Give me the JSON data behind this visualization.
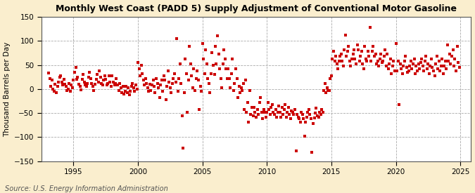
{
  "title": "Monthly West Coast (PADD 5) Supply Adjustment of Conventional Motor Gasoline",
  "ylabel": "Thousand Barrels per Day",
  "source": "Source: U.S. Energy Information Administration",
  "fig_bg_color": "#faeece",
  "plot_bg_color": "#ffffff",
  "dot_color": "#cc0000",
  "dot_size": 5,
  "ylim": [
    -150,
    150
  ],
  "xlim": [
    1992.5,
    2025.8
  ],
  "yticks": [
    -150,
    -100,
    -50,
    0,
    50,
    100,
    150
  ],
  "xticks": [
    1995,
    2000,
    2005,
    2010,
    2015,
    2020,
    2025
  ],
  "data_points": [
    [
      1993.08,
      33
    ],
    [
      1993.17,
      22
    ],
    [
      1993.25,
      5
    ],
    [
      1993.33,
      18
    ],
    [
      1993.42,
      0
    ],
    [
      1993.5,
      -5
    ],
    [
      1993.58,
      10
    ],
    [
      1993.67,
      -8
    ],
    [
      1993.75,
      5
    ],
    [
      1993.83,
      15
    ],
    [
      1993.92,
      25
    ],
    [
      1994.0,
      28
    ],
    [
      1994.08,
      15
    ],
    [
      1994.17,
      8
    ],
    [
      1994.25,
      20
    ],
    [
      1994.33,
      10
    ],
    [
      1994.42,
      5
    ],
    [
      1994.5,
      -3
    ],
    [
      1994.58,
      0
    ],
    [
      1994.67,
      12
    ],
    [
      1994.75,
      -5
    ],
    [
      1994.83,
      8
    ],
    [
      1994.92,
      3
    ],
    [
      1995.0,
      18
    ],
    [
      1995.08,
      35
    ],
    [
      1995.17,
      45
    ],
    [
      1995.25,
      20
    ],
    [
      1995.33,
      25
    ],
    [
      1995.42,
      10
    ],
    [
      1995.5,
      5
    ],
    [
      1995.58,
      -2
    ],
    [
      1995.67,
      20
    ],
    [
      1995.75,
      30
    ],
    [
      1995.83,
      15
    ],
    [
      1995.92,
      8
    ],
    [
      1996.0,
      5
    ],
    [
      1996.08,
      12
    ],
    [
      1996.17,
      25
    ],
    [
      1996.25,
      35
    ],
    [
      1996.33,
      22
    ],
    [
      1996.42,
      12
    ],
    [
      1996.5,
      5
    ],
    [
      1996.58,
      -3
    ],
    [
      1996.67,
      10
    ],
    [
      1996.75,
      20
    ],
    [
      1996.83,
      30
    ],
    [
      1996.92,
      15
    ],
    [
      1997.0,
      38
    ],
    [
      1997.08,
      25
    ],
    [
      1997.17,
      12
    ],
    [
      1997.25,
      8
    ],
    [
      1997.33,
      18
    ],
    [
      1997.42,
      28
    ],
    [
      1997.5,
      20
    ],
    [
      1997.58,
      8
    ],
    [
      1997.67,
      12
    ],
    [
      1997.75,
      28
    ],
    [
      1997.83,
      15
    ],
    [
      1997.92,
      5
    ],
    [
      1998.0,
      28
    ],
    [
      1998.08,
      15
    ],
    [
      1998.17,
      8
    ],
    [
      1998.25,
      12
    ],
    [
      1998.33,
      22
    ],
    [
      1998.42,
      8
    ],
    [
      1998.5,
      -3
    ],
    [
      1998.58,
      12
    ],
    [
      1998.67,
      2
    ],
    [
      1998.75,
      -8
    ],
    [
      1998.83,
      5
    ],
    [
      1998.92,
      -10
    ],
    [
      1999.0,
      -5
    ],
    [
      1999.08,
      5
    ],
    [
      1999.17,
      -8
    ],
    [
      1999.25,
      2
    ],
    [
      1999.33,
      -12
    ],
    [
      1999.42,
      -5
    ],
    [
      1999.5,
      5
    ],
    [
      1999.58,
      12
    ],
    [
      1999.67,
      2
    ],
    [
      1999.75,
      -5
    ],
    [
      1999.83,
      8
    ],
    [
      1999.92,
      0
    ],
    [
      2000.0,
      55
    ],
    [
      2000.08,
      42
    ],
    [
      2000.17,
      28
    ],
    [
      2000.25,
      50
    ],
    [
      2000.33,
      32
    ],
    [
      2000.42,
      18
    ],
    [
      2000.5,
      8
    ],
    [
      2000.58,
      22
    ],
    [
      2000.67,
      12
    ],
    [
      2000.75,
      2
    ],
    [
      2000.83,
      -5
    ],
    [
      2000.92,
      10
    ],
    [
      2001.0,
      -3
    ],
    [
      2001.08,
      8
    ],
    [
      2001.17,
      18
    ],
    [
      2001.25,
      5
    ],
    [
      2001.33,
      -8
    ],
    [
      2001.42,
      22
    ],
    [
      2001.5,
      12
    ],
    [
      2001.58,
      2
    ],
    [
      2001.67,
      -18
    ],
    [
      2001.75,
      8
    ],
    [
      2001.83,
      18
    ],
    [
      2001.92,
      -5
    ],
    [
      2002.0,
      28
    ],
    [
      2002.08,
      18
    ],
    [
      2002.17,
      -22
    ],
    [
      2002.25,
      5
    ],
    [
      2002.33,
      38
    ],
    [
      2002.42,
      15
    ],
    [
      2002.5,
      2
    ],
    [
      2002.58,
      -8
    ],
    [
      2002.67,
      12
    ],
    [
      2002.75,
      22
    ],
    [
      2002.83,
      32
    ],
    [
      2002.92,
      15
    ],
    [
      2003.0,
      105
    ],
    [
      2003.08,
      -5
    ],
    [
      2003.17,
      22
    ],
    [
      2003.25,
      52
    ],
    [
      2003.33,
      12
    ],
    [
      2003.42,
      -55
    ],
    [
      2003.5,
      -122
    ],
    [
      2003.58,
      -8
    ],
    [
      2003.67,
      62
    ],
    [
      2003.75,
      32
    ],
    [
      2003.83,
      -48
    ],
    [
      2003.92,
      18
    ],
    [
      2004.0,
      88
    ],
    [
      2004.08,
      52
    ],
    [
      2004.17,
      28
    ],
    [
      2004.25,
      2
    ],
    [
      2004.33,
      42
    ],
    [
      2004.42,
      -3
    ],
    [
      2004.5,
      22
    ],
    [
      2004.58,
      38
    ],
    [
      2004.67,
      18
    ],
    [
      2004.75,
      -42
    ],
    [
      2004.83,
      5
    ],
    [
      2004.92,
      -5
    ],
    [
      2005.0,
      95
    ],
    [
      2005.08,
      62
    ],
    [
      2005.17,
      32
    ],
    [
      2005.25,
      82
    ],
    [
      2005.33,
      52
    ],
    [
      2005.42,
      22
    ],
    [
      2005.5,
      12
    ],
    [
      2005.58,
      -8
    ],
    [
      2005.67,
      32
    ],
    [
      2005.75,
      75
    ],
    [
      2005.83,
      50
    ],
    [
      2005.92,
      30
    ],
    [
      2006.0,
      88
    ],
    [
      2006.08,
      52
    ],
    [
      2006.17,
      110
    ],
    [
      2006.25,
      72
    ],
    [
      2006.33,
      42
    ],
    [
      2006.42,
      22
    ],
    [
      2006.5,
      2
    ],
    [
      2006.58,
      52
    ],
    [
      2006.67,
      82
    ],
    [
      2006.75,
      62
    ],
    [
      2006.83,
      42
    ],
    [
      2006.92,
      22
    ],
    [
      2007.0,
      42
    ],
    [
      2007.08,
      22
    ],
    [
      2007.17,
      2
    ],
    [
      2007.25,
      32
    ],
    [
      2007.33,
      62
    ],
    [
      2007.42,
      -3
    ],
    [
      2007.5,
      12
    ],
    [
      2007.58,
      42
    ],
    [
      2007.67,
      22
    ],
    [
      2007.75,
      -18
    ],
    [
      2007.83,
      5
    ],
    [
      2007.92,
      -8
    ],
    [
      2008.0,
      2
    ],
    [
      2008.08,
      -3
    ],
    [
      2008.17,
      12
    ],
    [
      2008.25,
      -42
    ],
    [
      2008.33,
      18
    ],
    [
      2008.42,
      -48
    ],
    [
      2008.5,
      -28
    ],
    [
      2008.58,
      -68
    ],
    [
      2008.67,
      -3
    ],
    [
      2008.75,
      -52
    ],
    [
      2008.83,
      -38
    ],
    [
      2008.92,
      -55
    ],
    [
      2009.0,
      -38
    ],
    [
      2009.08,
      -48
    ],
    [
      2009.17,
      -58
    ],
    [
      2009.25,
      -42
    ],
    [
      2009.33,
      -52
    ],
    [
      2009.42,
      -28
    ],
    [
      2009.5,
      -18
    ],
    [
      2009.58,
      -48
    ],
    [
      2009.67,
      -62
    ],
    [
      2009.75,
      -42
    ],
    [
      2009.83,
      -48
    ],
    [
      2009.92,
      -58
    ],
    [
      2010.0,
      -48
    ],
    [
      2010.08,
      -28
    ],
    [
      2010.17,
      -42
    ],
    [
      2010.25,
      -52
    ],
    [
      2010.33,
      -38
    ],
    [
      2010.42,
      -32
    ],
    [
      2010.5,
      -48
    ],
    [
      2010.58,
      -52
    ],
    [
      2010.67,
      -42
    ],
    [
      2010.75,
      -58
    ],
    [
      2010.83,
      -48
    ],
    [
      2010.92,
      -35
    ],
    [
      2011.0,
      -48
    ],
    [
      2011.08,
      -58
    ],
    [
      2011.17,
      -38
    ],
    [
      2011.25,
      -52
    ],
    [
      2011.33,
      -42
    ],
    [
      2011.42,
      -32
    ],
    [
      2011.5,
      -58
    ],
    [
      2011.58,
      -48
    ],
    [
      2011.67,
      -38
    ],
    [
      2011.75,
      -52
    ],
    [
      2011.83,
      -62
    ],
    [
      2011.92,
      -45
    ],
    [
      2012.0,
      -48
    ],
    [
      2012.08,
      -52
    ],
    [
      2012.17,
      -42
    ],
    [
      2012.25,
      -128
    ],
    [
      2012.33,
      -52
    ],
    [
      2012.42,
      -58
    ],
    [
      2012.5,
      -62
    ],
    [
      2012.58,
      -68
    ],
    [
      2012.67,
      -48
    ],
    [
      2012.75,
      -52
    ],
    [
      2012.83,
      -62
    ],
    [
      2012.92,
      -98
    ],
    [
      2013.0,
      -68
    ],
    [
      2013.08,
      -58
    ],
    [
      2013.17,
      -48
    ],
    [
      2013.25,
      -42
    ],
    [
      2013.33,
      -52
    ],
    [
      2013.42,
      -62
    ],
    [
      2013.5,
      -132
    ],
    [
      2013.58,
      -72
    ],
    [
      2013.67,
      -60
    ],
    [
      2013.75,
      -50
    ],
    [
      2013.83,
      -40
    ],
    [
      2013.92,
      -55
    ],
    [
      2014.0,
      -58
    ],
    [
      2014.08,
      -48
    ],
    [
      2014.17,
      -52
    ],
    [
      2014.25,
      -42
    ],
    [
      2014.33,
      -48
    ],
    [
      2014.42,
      -3
    ],
    [
      2014.5,
      12
    ],
    [
      2014.58,
      -8
    ],
    [
      2014.67,
      2
    ],
    [
      2014.75,
      -3
    ],
    [
      2014.83,
      -3
    ],
    [
      2014.92,
      22
    ],
    [
      2015.0,
      28
    ],
    [
      2015.08,
      62
    ],
    [
      2015.17,
      78
    ],
    [
      2015.25,
      58
    ],
    [
      2015.33,
      68
    ],
    [
      2015.42,
      52
    ],
    [
      2015.5,
      42
    ],
    [
      2015.58,
      58
    ],
    [
      2015.67,
      68
    ],
    [
      2015.75,
      72
    ],
    [
      2015.83,
      58
    ],
    [
      2015.92,
      48
    ],
    [
      2016.0,
      82
    ],
    [
      2016.08,
      112
    ],
    [
      2016.17,
      68
    ],
    [
      2016.25,
      78
    ],
    [
      2016.33,
      88
    ],
    [
      2016.42,
      58
    ],
    [
      2016.5,
      48
    ],
    [
      2016.58,
      62
    ],
    [
      2016.67,
      72
    ],
    [
      2016.75,
      82
    ],
    [
      2016.83,
      62
    ],
    [
      2016.92,
      52
    ],
    [
      2017.0,
      92
    ],
    [
      2017.08,
      82
    ],
    [
      2017.17,
      58
    ],
    [
      2017.25,
      68
    ],
    [
      2017.33,
      78
    ],
    [
      2017.42,
      52
    ],
    [
      2017.5,
      42
    ],
    [
      2017.58,
      88
    ],
    [
      2017.67,
      62
    ],
    [
      2017.75,
      58
    ],
    [
      2017.83,
      78
    ],
    [
      2017.92,
      68
    ],
    [
      2018.0,
      128
    ],
    [
      2018.08,
      58
    ],
    [
      2018.17,
      78
    ],
    [
      2018.25,
      88
    ],
    [
      2018.33,
      68
    ],
    [
      2018.42,
      72
    ],
    [
      2018.5,
      52
    ],
    [
      2018.58,
      58
    ],
    [
      2018.67,
      48
    ],
    [
      2018.75,
      62
    ],
    [
      2018.83,
      72
    ],
    [
      2018.92,
      55
    ],
    [
      2019.0,
      58
    ],
    [
      2019.08,
      68
    ],
    [
      2019.17,
      82
    ],
    [
      2019.25,
      48
    ],
    [
      2019.33,
      72
    ],
    [
      2019.42,
      42
    ],
    [
      2019.5,
      52
    ],
    [
      2019.58,
      62
    ],
    [
      2019.67,
      32
    ],
    [
      2019.75,
      48
    ],
    [
      2019.83,
      58
    ],
    [
      2019.92,
      38
    ],
    [
      2020.0,
      95
    ],
    [
      2020.08,
      38
    ],
    [
      2020.17,
      58
    ],
    [
      2020.25,
      -32
    ],
    [
      2020.33,
      52
    ],
    [
      2020.42,
      42
    ],
    [
      2020.5,
      32
    ],
    [
      2020.58,
      48
    ],
    [
      2020.67,
      58
    ],
    [
      2020.75,
      68
    ],
    [
      2020.83,
      45
    ],
    [
      2020.92,
      35
    ],
    [
      2021.0,
      38
    ],
    [
      2021.08,
      48
    ],
    [
      2021.17,
      58
    ],
    [
      2021.25,
      42
    ],
    [
      2021.33,
      52
    ],
    [
      2021.42,
      62
    ],
    [
      2021.5,
      32
    ],
    [
      2021.58,
      48
    ],
    [
      2021.67,
      38
    ],
    [
      2021.75,
      52
    ],
    [
      2021.83,
      42
    ],
    [
      2021.92,
      55
    ],
    [
      2022.0,
      62
    ],
    [
      2022.08,
      48
    ],
    [
      2022.17,
      38
    ],
    [
      2022.25,
      58
    ],
    [
      2022.33,
      68
    ],
    [
      2022.42,
      42
    ],
    [
      2022.5,
      52
    ],
    [
      2022.58,
      32
    ],
    [
      2022.67,
      48
    ],
    [
      2022.75,
      62
    ],
    [
      2022.83,
      45
    ],
    [
      2022.92,
      38
    ],
    [
      2023.0,
      28
    ],
    [
      2023.08,
      52
    ],
    [
      2023.17,
      68
    ],
    [
      2023.25,
      42
    ],
    [
      2023.33,
      58
    ],
    [
      2023.42,
      38
    ],
    [
      2023.5,
      48
    ],
    [
      2023.58,
      62
    ],
    [
      2023.67,
      32
    ],
    [
      2023.75,
      48
    ],
    [
      2023.83,
      58
    ],
    [
      2023.92,
      42
    ],
    [
      2024.0,
      92
    ],
    [
      2024.08,
      58
    ],
    [
      2024.17,
      72
    ],
    [
      2024.25,
      52
    ],
    [
      2024.33,
      68
    ],
    [
      2024.42,
      82
    ],
    [
      2024.5,
      48
    ],
    [
      2024.58,
      62
    ],
    [
      2024.67,
      38
    ],
    [
      2024.75,
      88
    ],
    [
      2024.83,
      55
    ],
    [
      2024.92,
      45
    ]
  ]
}
